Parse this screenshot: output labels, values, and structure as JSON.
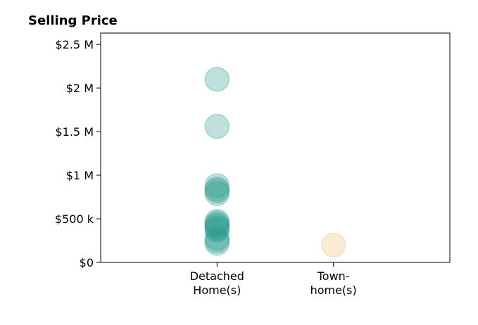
{
  "chart_data": {
    "type": "scatter",
    "title": "Selling Price",
    "xlabel": "",
    "ylabel": "",
    "categories": [
      [
        "Detached",
        "Home(s)"
      ],
      [
        "Town-",
        "home(s)"
      ]
    ],
    "y_ticks": [
      {
        "value": 0,
        "label": "$0"
      },
      {
        "value": 500000,
        "label": "$500 k"
      },
      {
        "value": 1000000,
        "label": "$1 M"
      },
      {
        "value": 1500000,
        "label": "$1.5 M"
      },
      {
        "value": 2000000,
        "label": "$2 M"
      },
      {
        "value": 2500000,
        "label": "$2.5 M"
      }
    ],
    "ylim": [
      0,
      2630000
    ],
    "xlim": [
      0,
      3
    ],
    "grid": false,
    "legend": "none",
    "series": [
      {
        "category": "Detached Home(s)",
        "x": 1,
        "color": "#2a9d8f",
        "values": [
          2100000,
          1560000,
          880000,
          840000,
          820000,
          790000,
          470000,
          450000,
          430000,
          410000,
          390000,
          370000,
          280000,
          250000,
          220000
        ]
      },
      {
        "category": "Town-home(s)",
        "x": 2,
        "color": "#e9c46a",
        "values": [
          200000
        ]
      }
    ]
  }
}
